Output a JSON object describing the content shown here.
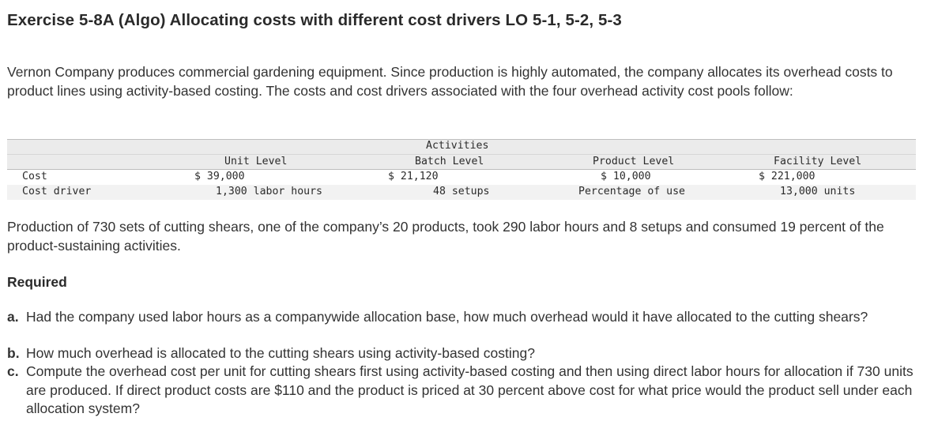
{
  "title": "Exercise 5-8A (Algo) Allocating costs with different cost drivers LO 5-1, 5-2, 5-3",
  "intro": "Vernon Company produces commercial gardening equipment. Since production is highly automated, the company allocates its overhead costs to product lines using activity-based costing. The costs and cost drivers associated with the four overhead activity cost pools follow:",
  "table": {
    "group_header": "Activities",
    "columns": [
      "Unit Level",
      "Batch Level",
      "Product Level",
      "Facility Level"
    ],
    "rows": [
      {
        "label": "Cost",
        "cells": [
          "$ 39,000",
          "$ 21,120",
          "$ 10,000",
          "$ 221,000"
        ]
      },
      {
        "label": "Cost driver",
        "cells": [
          "1,300 labor hours",
          "48 setups",
          "Percentage of use",
          "13,000 units"
        ]
      }
    ]
  },
  "production_text": "Production of 730 sets of cutting shears, one of the company’s 20 products, took 290 labor hours and 8 setups and consumed 19 percent of the product-sustaining activities.",
  "required_heading": "Required",
  "questions": [
    {
      "label": "a.",
      "text": "Had the company used labor hours as a companywide allocation base, how much overhead would it have allocated to the cutting shears?"
    },
    {
      "label": "b.",
      "text": "How much overhead is allocated to the cutting shears using activity-based costing?"
    },
    {
      "label": "c.",
      "text": "Compute the overhead cost per unit for cutting shears first using activity-based costing and then using direct labor hours for allocation if 730 units are produced. If direct product costs are $110 and the product is priced at 30 percent above cost for what price would the product sell under each allocation system?"
    }
  ]
}
